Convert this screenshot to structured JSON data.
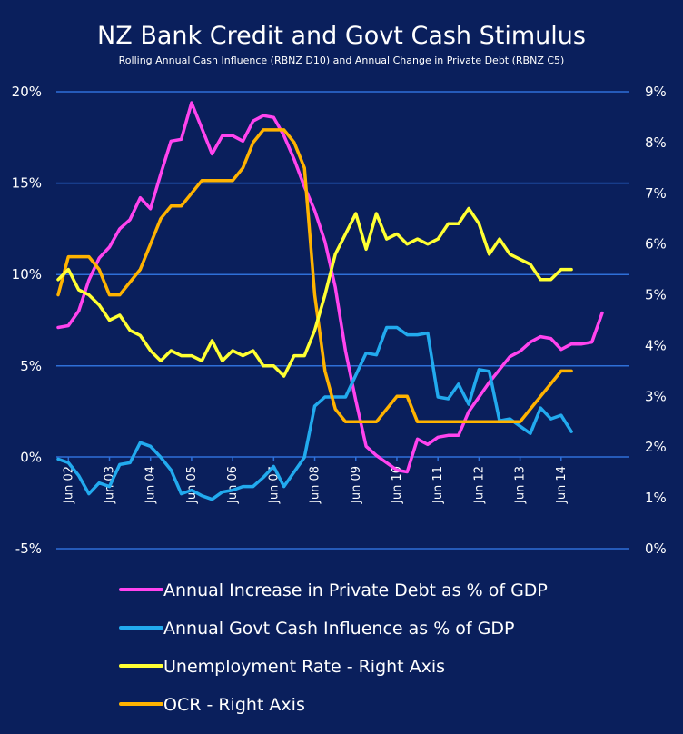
{
  "chart_data": {
    "type": "line",
    "title": "NZ Bank Credit and Govt Cash Stimulus",
    "subtitle": "Rolling Annual Cash Influence (RBNZ D10) and Annual Change in Private Debt (RBNZ C5)",
    "x_start": "2002-03",
    "x_step_months": 3,
    "x_tick_labels": [
      "Jun 02",
      "Jun 03",
      "Jun 04",
      "Jun 05",
      "Jun 06",
      "Jun 07",
      "Jun 08",
      "Jun 09",
      "Jun 10",
      "Jun 11",
      "Jun 12",
      "Jun 13",
      "Jun 14"
    ],
    "left_axis": {
      "ylim": [
        -5,
        20
      ],
      "ticks": [
        -5,
        0,
        5,
        10,
        15,
        20
      ],
      "tick_labels": [
        "-5%",
        "0%",
        "5%",
        "10%",
        "15%",
        "20%"
      ]
    },
    "right_axis": {
      "ylim": [
        0,
        9
      ],
      "ticks": [
        0,
        1,
        2,
        3,
        4,
        5,
        6,
        7,
        8,
        9
      ],
      "tick_labels": [
        "0%",
        "1%",
        "2%",
        "3%",
        "4%",
        "5%",
        "6%",
        "7%",
        "8%",
        "9%"
      ]
    },
    "grid": true,
    "legend_position": "bottom",
    "series": [
      {
        "name": "Annual Increase in Private Debt as % of GDP",
        "axis": "left",
        "color": "#ff44ee",
        "values": [
          7.1,
          7.2,
          8.0,
          9.7,
          10.9,
          11.5,
          12.5,
          13.0,
          14.2,
          13.6,
          15.5,
          17.3,
          17.4,
          19.4,
          18.0,
          16.6,
          17.6,
          17.6,
          17.3,
          18.4,
          18.7,
          18.6,
          17.6,
          16.3,
          14.8,
          13.5,
          11.8,
          9.3,
          5.8,
          3.1,
          0.6,
          0.1,
          -0.3,
          -0.7,
          -0.8,
          1.0,
          0.7,
          1.1,
          1.2,
          1.2,
          2.5,
          3.3,
          4.1,
          4.8,
          5.5,
          5.8,
          6.3,
          6.6,
          6.5,
          5.9,
          6.2,
          6.2,
          6.3,
          7.9
        ]
      },
      {
        "name": "Annual Govt Cash Influence as % of GDP",
        "axis": "left",
        "color": "#22aaee",
        "values": [
          -0.1,
          -0.3,
          -1.0,
          -2.0,
          -1.4,
          -1.6,
          -0.4,
          -0.3,
          0.8,
          0.6,
          0.0,
          -0.7,
          -2.0,
          -1.8,
          -2.1,
          -2.3,
          -1.9,
          -1.8,
          -1.6,
          -1.6,
          -1.1,
          -0.5,
          -1.6,
          -0.8,
          0.0,
          2.8,
          3.3,
          3.3,
          3.3,
          4.5,
          5.7,
          5.6,
          7.1,
          7.1,
          6.7,
          6.7,
          6.8,
          3.3,
          3.2,
          4.0,
          2.9,
          4.8,
          4.7,
          2.0,
          2.1,
          1.7,
          1.3,
          2.7,
          2.1,
          2.3,
          1.4
        ]
      },
      {
        "name": "Unemployment Rate - Right Axis",
        "axis": "right",
        "color": "#ffff33",
        "values": [
          5.3,
          5.5,
          5.1,
          5.0,
          4.8,
          4.5,
          4.6,
          4.3,
          4.2,
          3.9,
          3.7,
          3.9,
          3.8,
          3.8,
          3.7,
          4.1,
          3.7,
          3.9,
          3.8,
          3.9,
          3.6,
          3.6,
          3.4,
          3.8,
          3.8,
          4.3,
          5.0,
          5.8,
          6.2,
          6.6,
          5.9,
          6.6,
          6.1,
          6.2,
          6.0,
          6.1,
          6.0,
          6.1,
          6.4,
          6.4,
          6.7,
          6.4,
          5.8,
          6.1,
          5.8,
          5.7,
          5.6,
          5.3,
          5.3,
          5.5,
          5.5
        ]
      },
      {
        "name": "OCR - Right Axis",
        "axis": "right",
        "color": "#ffb300",
        "values": [
          5.0,
          5.75,
          5.75,
          5.75,
          5.5,
          5.0,
          5.0,
          5.25,
          5.5,
          6.0,
          6.5,
          6.75,
          6.75,
          7.0,
          7.25,
          7.25,
          7.25,
          7.25,
          7.5,
          8.0,
          8.25,
          8.25,
          8.25,
          8.0,
          7.5,
          5.0,
          3.5,
          2.75,
          2.5,
          2.5,
          2.5,
          2.5,
          2.75,
          3.0,
          3.0,
          2.5,
          2.5,
          2.5,
          2.5,
          2.5,
          2.5,
          2.5,
          2.5,
          2.5,
          2.5,
          2.5,
          2.75,
          3.0,
          3.25,
          3.5,
          3.5
        ]
      }
    ]
  }
}
